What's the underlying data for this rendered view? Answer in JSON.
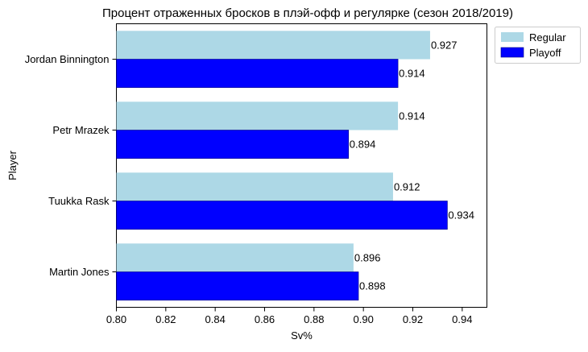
{
  "chart_data": {
    "type": "bar",
    "orientation": "horizontal",
    "title": "Процент отраженных бросков в плэй-офф и регулярке (сезон 2018/2019)",
    "xlabel": "Sv%",
    "ylabel": "Player",
    "xlim": [
      0.8,
      0.95
    ],
    "xticks": [
      0.8,
      0.82,
      0.84,
      0.86,
      0.88,
      0.9,
      0.92,
      0.94
    ],
    "xtick_labels": [
      "0.80",
      "0.82",
      "0.84",
      "0.86",
      "0.88",
      "0.90",
      "0.92",
      "0.94"
    ],
    "categories": [
      "Jordan Binnington",
      "Petr Mrazek",
      "Tuukka Rask",
      "Martin Jones"
    ],
    "series": [
      {
        "name": "Regular",
        "color": "#add8e6",
        "values": [
          0.927,
          0.914,
          0.912,
          0.896
        ],
        "labels": [
          "0.927",
          "0.914",
          "0.912",
          "0.896"
        ]
      },
      {
        "name": "Playoff",
        "color": "#0000ff",
        "values": [
          0.914,
          0.894,
          0.934,
          0.898
        ],
        "labels": [
          "0.914",
          "0.894",
          "0.934",
          "0.898"
        ]
      }
    ],
    "legend": {
      "position": "top-right-outside",
      "entries": [
        "Regular",
        "Playoff"
      ]
    },
    "grid": false
  }
}
